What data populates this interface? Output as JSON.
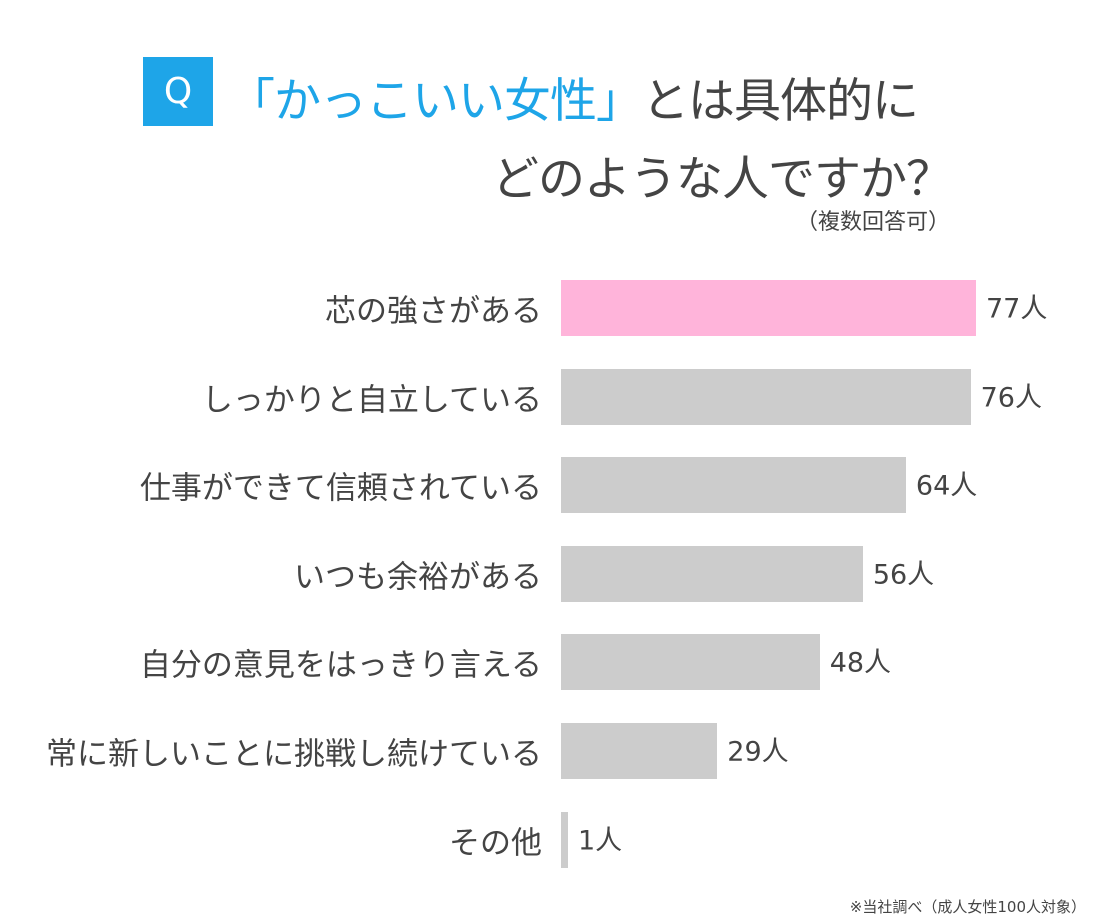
{
  "chart_data": {
    "type": "bar",
    "orientation": "horizontal",
    "title_prefix": "Q",
    "title_highlight": "「かっこいい女性」",
    "title_rest": "とは具体的に",
    "title_line2": "どのような人ですか？",
    "subtitle": "（複数回答可）",
    "unit": "人",
    "categories": [
      "芯の強さがある",
      "しっかりと自立している",
      "仕事ができて信頼されている",
      "いつも余裕がある",
      "自分の意見をはっきり言える",
      "常に新しいことに挑戦し続けている",
      "その他"
    ],
    "values": [
      77,
      76,
      64,
      56,
      48,
      29,
      1
    ],
    "value_labels": [
      "77人",
      "76人",
      "64人",
      "56人",
      "48人",
      "29人",
      "1人"
    ],
    "highlight_index": 0,
    "xlim": [
      0,
      77
    ],
    "grid": false,
    "footnote": "※当社調べ（成人女性100人対象）",
    "colors": {
      "highlight": "#ffb4da",
      "bar": "#cccccc",
      "accent": "#1ea5e8",
      "text": "#444444"
    }
  }
}
